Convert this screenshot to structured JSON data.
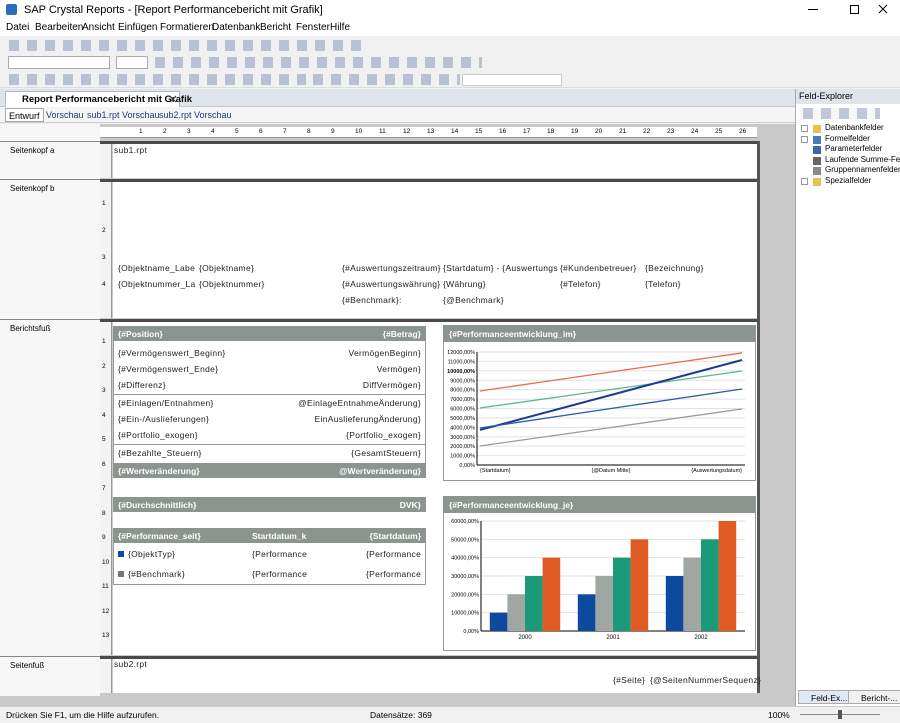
{
  "window": {
    "title": "SAP Crystal Reports - [Report Performancebericht mit Grafik]"
  },
  "menu": [
    "Datei",
    "Bearbeiten",
    "Ansicht",
    "Einfügen",
    "Formatieren",
    "Datenbank",
    "Bericht",
    "Fenster",
    "Hilfe"
  ],
  "document_tab": "Report Performancebericht mit Grafik",
  "view_tabs": [
    "Entwurf",
    "Vorschau",
    "sub1.rpt Vorschau",
    "sub2.rpt Vorschau"
  ],
  "ruler": [
    1,
    2,
    3,
    4,
    5,
    6,
    7,
    8,
    9,
    10,
    11,
    12,
    13,
    14,
    15,
    16,
    17,
    18,
    19,
    20,
    21,
    22,
    23,
    24,
    25,
    26
  ],
  "sections": [
    "Seitenkopf a",
    "Seitenkopf b",
    "Berichtsfuß",
    "Seitenfuß"
  ],
  "vertical_ruler": {
    "header_b": [
      1,
      2,
      3,
      4
    ],
    "report_footer": [
      1,
      2,
      3,
      4,
      5,
      6,
      7,
      8,
      9,
      10,
      11,
      12,
      13
    ]
  },
  "header_a": {
    "subreport": "sub1.rpt"
  },
  "header_b": {
    "rows": [
      [
        "{Objektname_Labe",
        "{Objektname}",
        "{#Auswertungszeitraum}",
        "{Startdatum} - {Auswertungs",
        "{#Kundenbetreuer}",
        "{Bezeichnung}"
      ],
      [
        "{Objektnummer_La",
        "{Objektnummer}",
        "{#Auswertungswährung}",
        "{Währung}",
        "{#Telefon}",
        "{Telefon}"
      ],
      [
        "{#Benchmark}:",
        "{@Benchmark}"
      ]
    ]
  },
  "report_footer": {
    "table": {
      "header": [
        "{#Position}",
        "{#Betrag}"
      ],
      "rows": [
        [
          "{#Vermögenswert_Beginn}",
          "VermögenBeginn}"
        ],
        [
          "{#Vermögenswert_Ende}",
          "Vermögen}"
        ],
        [
          "{#Differenz}",
          "DiffVermögen}"
        ],
        [
          "{#Einlagen/Entnahmen}",
          "@EinlageEntnahmeÄnderung}"
        ],
        [
          "{#Ein-/Auslieferungen}",
          "EinAuslieferungÄnderung}"
        ],
        [
          "{#Portfolio_exogen}",
          "{Portfolio_exogen}"
        ],
        [
          "{#Bezahlte_Steuern}",
          "{GesamtSteuern}"
        ]
      ],
      "total": [
        "{#Wertveränderung}",
        "@Wertveränderung}"
      ]
    },
    "average": [
      "{#Durchschnittlich}",
      "DVK}"
    ],
    "performance": {
      "header": [
        "{#Performance_seit}",
        "Startdatum_k",
        "{Startdatum}"
      ],
      "rows": [
        [
          "{ObjektTyp}",
          "{Performance",
          "{Performance"
        ],
        [
          "{#Benchmark}",
          "{Performance",
          "{Performance"
        ]
      ]
    }
  },
  "chart_data": [
    {
      "type": "line",
      "title": "{#Performanceentwicklung_im}",
      "categories": [
        "{Startdatum}",
        "{@Datum Mitte}",
        "{Auswertungsdatum}"
      ],
      "series": [
        {
          "color": "#e8703f",
          "values": [
            7860,
            9880,
            11900
          ]
        },
        {
          "color": "#5cb88a",
          "values": [
            6050,
            8015,
            9980
          ]
        },
        {
          "color": "#1c3a8e",
          "values": [
            3720,
            7435,
            11150
          ]
        },
        {
          "color": "#2a5bb0",
          "values": [
            3930,
            6000,
            8070
          ]
        },
        {
          "color": "#9a9a9a",
          "values": [
            2020,
            3985,
            5950
          ]
        }
      ],
      "ylim": [
        0,
        12000
      ],
      "yticks": [
        {
          "value": 0,
          "label": "0,00%"
        },
        {
          "value": 1000,
          "label": "1000,00%"
        },
        {
          "value": 2000,
          "label": "2000,00%"
        },
        {
          "value": 3000,
          "label": "3000,00%"
        },
        {
          "value": 4000,
          "label": "4000,00%"
        },
        {
          "value": 5000,
          "label": "5000,00%"
        },
        {
          "value": 6000,
          "label": "6000,00%"
        },
        {
          "value": 7000,
          "label": "7000,00%"
        },
        {
          "value": 8000,
          "label": "8000,00%"
        },
        {
          "value": 9000,
          "label": "9000,00%"
        },
        {
          "value": 10000,
          "label": "10000,00%"
        },
        {
          "value": 11000,
          "label": "11000,00%"
        },
        {
          "value": 12000,
          "label": "12000,00%"
        }
      ],
      "grid": true
    },
    {
      "type": "bar",
      "title": "{#Performanceentwicklung_je}",
      "categories": [
        "2000",
        "2001",
        "2002"
      ],
      "series": [
        {
          "color": "#0b4a9c",
          "values": [
            10000,
            20000,
            30000
          ]
        },
        {
          "color": "#a0a6a2",
          "values": [
            20000,
            30000,
            40000
          ]
        },
        {
          "color": "#1a9a78",
          "values": [
            30000,
            40000,
            50000
          ]
        },
        {
          "color": "#e05a24",
          "values": [
            40000,
            50000,
            60000
          ]
        }
      ],
      "ylim": [
        0,
        60000
      ],
      "yticks": [
        {
          "value": 0,
          "label": "0,00%"
        },
        {
          "value": 10000,
          "label": "10000,00%"
        },
        {
          "value": 20000,
          "label": "20000,00%"
        },
        {
          "value": 30000,
          "label": "30000,00%"
        },
        {
          "value": 40000,
          "label": "40000,00%"
        },
        {
          "value": 50000,
          "label": "50000,00%"
        },
        {
          "value": 60000,
          "label": "60000,00%"
        }
      ],
      "grid": true
    }
  ],
  "page_footer": {
    "subreport": "sub2.rpt",
    "fields": [
      "{#Seite}",
      "{@SeitenNummerSequenz}"
    ]
  },
  "field_explorer": {
    "title": "Feld-Explorer",
    "items": [
      "Datenbankfelder",
      "Formelfelder",
      "Parameterfelder",
      "Laufende Summe-Felder",
      "Gruppennamenfelder",
      "Spezialfelder"
    ]
  },
  "bottom_tabs": [
    "Feld-Ex...",
    "Bericht-..."
  ],
  "status": {
    "help": "Drücken Sie F1, um die Hilfe aufzurufen.",
    "records": "Datensätze: 369",
    "zoom": "100%"
  }
}
